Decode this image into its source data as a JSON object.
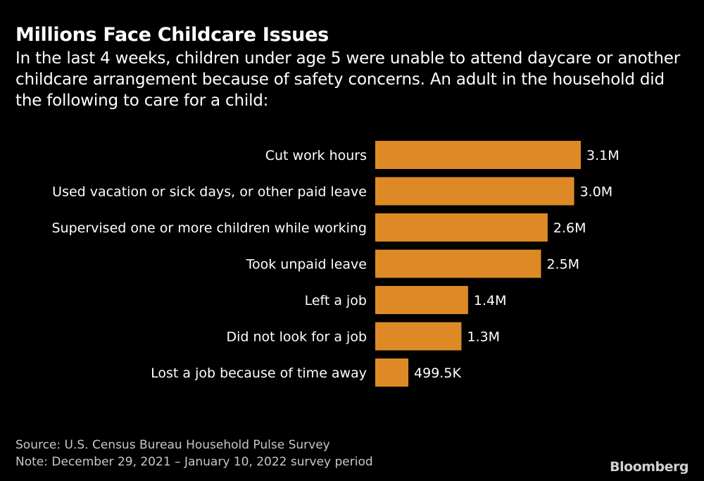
{
  "chart_data": {
    "type": "bar",
    "orientation": "horizontal",
    "title": "Millions Face Childcare Issues",
    "subtitle": "In the last 4 weeks, children under age 5 were unable to attend daycare or another childcare arrangement because of safety concerns. An adult in the household did the following to care for a child:",
    "categories": [
      "Cut work hours",
      "Used vacation or sick days, or other paid leave",
      "Supervised one or more children while working",
      "Took unpaid leave",
      "Left a job",
      "Did not look for a job",
      "Lost a job because of time away"
    ],
    "values": [
      3100000,
      3000000,
      2600000,
      2500000,
      1400000,
      1300000,
      499500
    ],
    "data_labels": [
      "3.1M",
      "3.0M",
      "2.6M",
      "2.5M",
      "1.4M",
      "1.3M",
      "499.5K"
    ],
    "xlim": [
      0,
      3100000
    ],
    "grid": false,
    "bar_color": "#DD8A26"
  },
  "footer": {
    "source": "Source: U.S. Census Bureau Household Pulse Survey",
    "note": "Note: December 29, 2021 – January 10, 2022 survey period",
    "logo": "Bloomberg"
  }
}
